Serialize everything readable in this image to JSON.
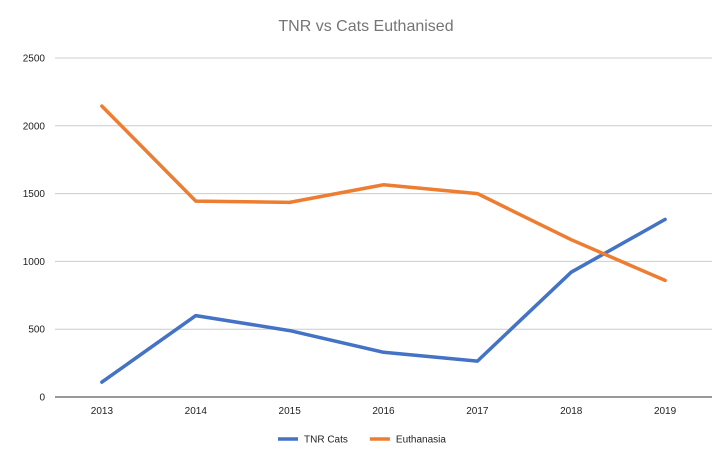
{
  "chart_data": {
    "type": "line",
    "title": "TNR vs Cats Euthanised",
    "xlabel": "",
    "ylabel": "",
    "categories": [
      "2013",
      "2014",
      "2015",
      "2016",
      "2017",
      "2018",
      "2019"
    ],
    "y_ticks": [
      "0",
      "500",
      "1000",
      "1500",
      "2000",
      "2500"
    ],
    "ylim": [
      0,
      2500
    ],
    "grid": true,
    "legend_position": "bottom",
    "series": [
      {
        "name": "TNR Cats",
        "color": "#4472C4",
        "values": [
          110,
          600,
          490,
          330,
          265,
          920,
          1310
        ]
      },
      {
        "name": "Euthanasia",
        "color": "#ED7D31",
        "values": [
          2145,
          1445,
          1435,
          1565,
          1500,
          1160,
          860
        ]
      }
    ]
  }
}
